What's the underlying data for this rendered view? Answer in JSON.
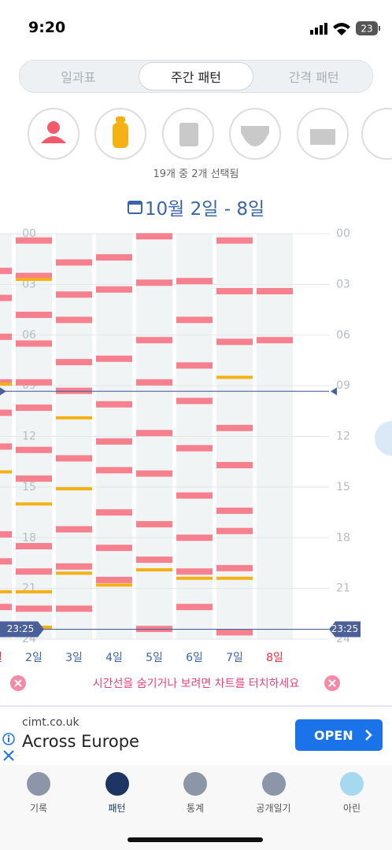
{
  "status": {
    "time": "9:20",
    "battery": "23"
  },
  "tabs": [
    "일과표",
    "주간 패턴",
    "간격 패턴"
  ],
  "selected_tab": 1,
  "selection_note": "19개 중 2개 선택됨",
  "chart_data": {
    "type": "timeline",
    "title": "10월 2일 - 8일",
    "ylim": [
      0,
      24
    ],
    "yticks": [
      {
        "value": 0,
        "label": "00"
      },
      {
        "value": 3,
        "label": "03"
      },
      {
        "value": 6,
        "label": "06"
      },
      {
        "value": 9,
        "label": "09"
      },
      12,
      15,
      18,
      21,
      24
    ],
    "colors": {
      "feeding": "#f6808e",
      "bottle": "#f5b014"
    },
    "days": [
      {
        "label": "1일",
        "label_color": "#e0303f",
        "feeding": [
          2.2,
          3.8,
          6.1,
          8.8,
          10.6,
          12.6,
          17.8,
          19.4,
          22.1
        ],
        "bottle": [
          8.9,
          14.1,
          21.2
        ]
      },
      {
        "label": "2일",
        "label_color": "#3a64a8",
        "feeding": [
          0.4,
          2.5,
          4.8,
          6.5,
          8.8,
          10.3,
          12.8,
          14.5,
          18.5,
          20,
          22.2
        ],
        "bottle": [
          2.7,
          16,
          21.2,
          23.3
        ]
      },
      {
        "label": "3일",
        "label_color": "#3a64a8",
        "feeding": [
          1.7,
          3.6,
          5.1,
          7.6,
          9.3,
          13.3,
          17.5,
          19.7,
          22.2
        ],
        "bottle": [
          10.9,
          15.1,
          20.1
        ]
      },
      {
        "label": "4일",
        "label_color": "#3a64a8",
        "feeding": [
          1.4,
          3.3,
          7.4,
          10.1,
          12.3,
          14,
          16.5,
          18.6,
          20.5
        ],
        "bottle": [
          20.8
        ]
      },
      {
        "label": "5일",
        "label_color": "#3a64a8",
        "feeding": [
          0.15,
          2.9,
          6.3,
          8.8,
          11.8,
          14.2,
          17.2,
          19.3,
          23.4
        ],
        "bottle": [
          19.9
        ]
      },
      {
        "label": "6일",
        "label_color": "#3a64a8",
        "feeding": [
          2.8,
          5.1,
          7.8,
          9.9,
          12.7,
          15.5,
          18,
          20,
          22.1
        ],
        "bottle": [
          20.4
        ]
      },
      {
        "label": "7일",
        "label_color": "#3a64a8",
        "feeding": [
          0.4,
          3.4,
          6.4,
          11.5,
          13.7,
          16.4,
          17.6,
          19.8,
          23.6
        ],
        "bottle": [
          8.5,
          20.4
        ]
      },
      {
        "label": "8일",
        "label_color": "#e0303f",
        "feeding": [
          3.4,
          6.3
        ],
        "bottle": []
      }
    ],
    "time_lines": [
      9.33,
      {
        "value": 23.42,
        "label": "23:25"
      }
    ]
  },
  "hint": "시간선을 숨기거나 보려면 차트를 터치하세요",
  "ad": {
    "domain": "cimt.co.uk",
    "headline": "Across Europe",
    "button": "OPEN"
  },
  "nav": [
    "기록",
    "패턴",
    "통계",
    "공개일기",
    "아린"
  ],
  "selected_nav": 1
}
